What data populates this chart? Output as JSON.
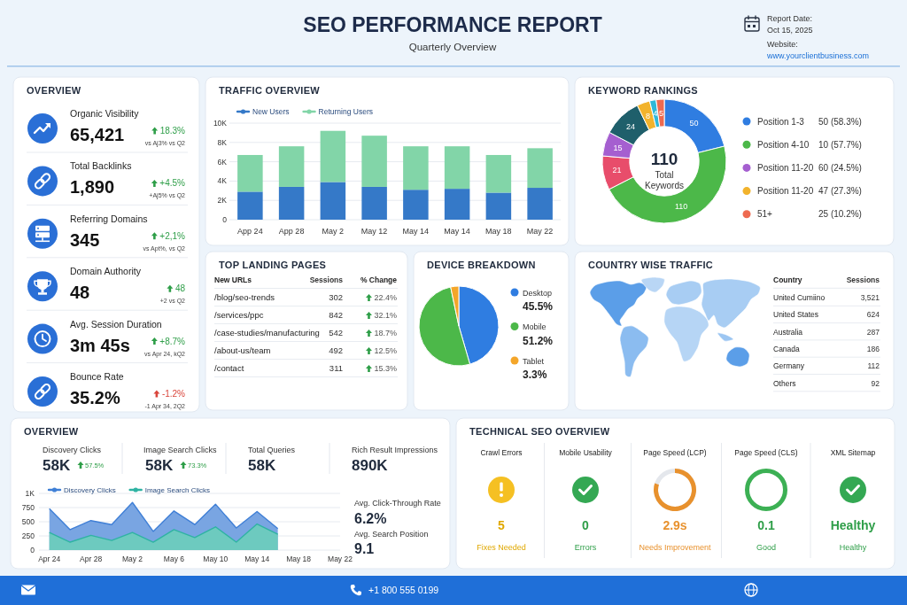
{
  "chart_data": [
    {
      "type": "other",
      "title": "SEO PERFORMANCE REPORT",
      "subtitle": "Quarterly Overview",
      "annotations": [
        "Report Date:",
        "Oct 15, 2025",
        "Website:",
        "www.yourclientbusiness.com"
      ]
    },
    {
      "type": "other",
      "title": "OVERVIEW",
      "annotations": [
        "Organic Visibility",
        "65,421",
        "18.3%",
        "vs Aj3% vs Q2",
        "Total Backlinks",
        "1,890",
        "+4.5%",
        "+Aj5% vs Q2",
        "Referring Domains",
        "345",
        "+2,1%",
        "vs Apt%, vs Q2",
        "Domain Authority",
        "48",
        "48",
        "+2 vs Q2",
        "Avg. Session Duration",
        "3m 45s",
        "+8.7%",
        "vs Apr 24, kQ2",
        "Bounce Rate",
        "35.2%",
        "-1.2%",
        "-1 Apr 34, 2Q2"
      ]
    },
    {
      "type": "bar",
      "title": "TRAFFIC OVERVIEW",
      "categories": [
        "App 24",
        "App 28",
        "May 2",
        "May 12",
        "May 14",
        "May 14",
        "May 18",
        "May 22"
      ],
      "series": [
        {
          "name": "New Users",
          "color": "#3579c8",
          "values": [
            2900,
            3400,
            3900,
            3400,
            3100,
            3200,
            2800,
            3300
          ]
        },
        {
          "name": "Returning Users",
          "color": "#82d5a8",
          "values": [
            3800,
            4200,
            5300,
            5300,
            4500,
            4400,
            3900,
            4100
          ]
        }
      ],
      "stacked": true,
      "ylim": [
        0,
        10000
      ],
      "yticks": [
        0,
        {
          "value": 2000,
          "label": "2K"
        },
        {
          "value": 4000,
          "label": "4K"
        },
        {
          "value": 6000,
          "label": "6K"
        },
        {
          "value": 8000,
          "label": "8K"
        },
        {
          "value": 10000,
          "label": "10K"
        }
      ],
      "grid": "y",
      "legend": "top left"
    },
    {
      "type": "donut",
      "title": "KEYWORD RANKINGS",
      "categories": [
        "Position 1-3",
        "Position 4-10",
        null,
        "Position 11-20",
        null,
        "Position 11-20",
        null,
        "51+"
      ],
      "values": [
        50,
        110,
        21,
        15,
        24,
        8,
        4,
        5
      ],
      "colors": [
        "#2f7de1",
        "#4cb849",
        "#e84d6b",
        "#a55fd0",
        "#1f5f6b",
        "#f2b32c",
        "#2fb8d8",
        "#ee6a50"
      ],
      "data_labels": true,
      "legend": "right",
      "annotations": [
        "50 (58.3%)",
        "10 (57.7%)",
        "60 (24.5%)",
        "47 (27.3%)",
        "25 (10.2%)",
        "110",
        "Total Keywords"
      ]
    },
    {
      "type": "other",
      "title": "TOP LANDING PAGES",
      "annotations": [
        "New URLs",
        "Sessions",
        "% Change",
        "/blog/seo-trends",
        "302",
        "22.4%",
        "/services/ppc",
        "842",
        "32.1%",
        "/case-studies/manufacturing",
        "542",
        "18.7%",
        "/about-us/team",
        "492",
        "12.5%",
        "/contact",
        "311",
        "15.3%"
      ]
    },
    {
      "type": "pie",
      "title": "DEVICE BREAKDOWN",
      "categories": [
        "Desktop",
        "Mobile",
        "Tablet"
      ],
      "values": [
        45.5,
        51.2,
        3.3
      ],
      "colors": [
        "#2f7de1",
        "#4cb849",
        "#f4a62a"
      ],
      "value_labels": [
        "45.5%",
        "51.2%",
        "3.3%"
      ],
      "legend": "right"
    },
    {
      "type": "other",
      "title": "COUNTRY WISE TRAFFIC",
      "annotations": [
        "Country",
        "Sessions",
        "United Cumiino",
        "3,521",
        "United States",
        "624",
        "Australia",
        "287",
        "Canada",
        "186",
        "Germany",
        "112",
        "Others",
        "92"
      ]
    },
    {
      "type": "area",
      "title": "OVERVIEW",
      "x": [
        "--04-24",
        "--04-26",
        "--04-28",
        "--04-30",
        "--05-02",
        "--05-04",
        "--05-06",
        "--05-08",
        "--05-10",
        "--05-12",
        "--05-14",
        "--05-16"
      ],
      "series": [
        {
          "name": "Discovery Clicks",
          "color": "#3f7fd6",
          "values": [
            730,
            360,
            520,
            450,
            840,
            330,
            690,
            450,
            810,
            390,
            680,
            380
          ]
        },
        {
          "name": "Image Search Clicks",
          "color": "#2fb3a3",
          "values": [
            310,
            140,
            260,
            170,
            310,
            140,
            360,
            220,
            410,
            140,
            460,
            280
          ]
        }
      ],
      "xlim": [
        "--04-23",
        "--05-22"
      ],
      "xticks": [
        {
          "value": "--04-24",
          "label": "Apr 24"
        },
        {
          "value": "--04-28",
          "label": "Apr 28"
        },
        {
          "value": "--05-02",
          "label": "May 2"
        },
        {
          "value": "--05-06",
          "label": "May 6"
        },
        {
          "value": "--05-10",
          "label": "May 10"
        },
        {
          "value": "--05-14",
          "label": "May 14"
        },
        {
          "value": "--05-18",
          "label": "May 18"
        },
        {
          "value": "--05-22",
          "label": "May 22"
        }
      ],
      "ylim": [
        0,
        1000
      ],
      "yticks": [
        0,
        250,
        500,
        750,
        {
          "value": 1000,
          "label": "1K"
        }
      ],
      "grid": "y",
      "legend": "top left",
      "annotations": [
        "Discovery Clicks",
        "58K",
        "57.5%",
        "Image Search Clicks",
        "58K",
        "73.3%",
        "Total Queries",
        "58K",
        "Rich Result Impressions",
        "890K",
        "Avg. Click-Through Rate",
        "6.2%",
        "Avg. Search Position",
        "9.1"
      ]
    },
    {
      "type": "other",
      "title": "TECHNICAL SEO OVERVIEW",
      "annotations": [
        "Crawl Errors",
        "5",
        "Fixes Needed",
        "Mobile Usability",
        "0",
        "Errors",
        "Page Speed (LCP)",
        "2.9s",
        "Needs Improvement",
        "Page Speed (CLS)",
        "0.1",
        "Good",
        "XML Sitemap",
        "Healthy",
        "Healthy"
      ]
    },
    {
      "type": "other",
      "annotations": [
        "+1 800 555 0199"
      ]
    }
  ]
}
